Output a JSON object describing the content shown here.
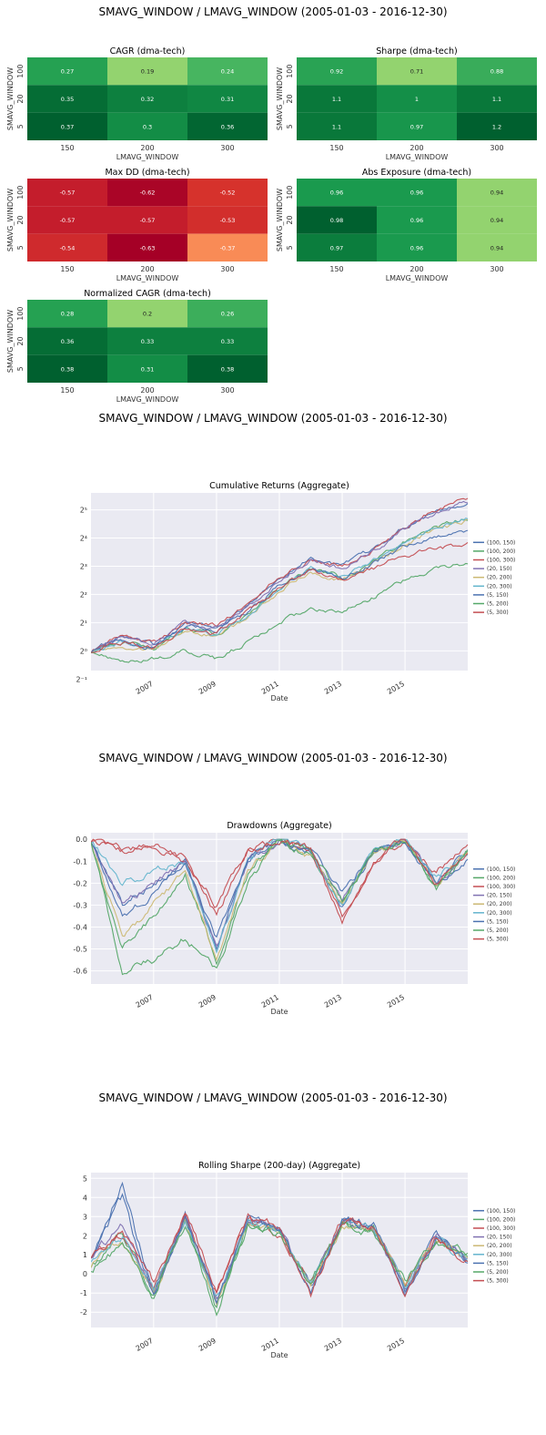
{
  "page": {
    "section_title": "SMAVG_WINDOW / LMAVG_WINDOW (2005-01-03 - 2016-12-30)"
  },
  "heatmaps": {
    "xlabel": "LMAVG_WINDOW",
    "ylabel": "SMAVG_WINDOW",
    "x_ticks": [
      "150",
      "200",
      "300"
    ],
    "y_ticks": [
      "100",
      "20",
      "5"
    ],
    "panels": [
      {
        "title": "CAGR (dma-tech)",
        "palette": "greens",
        "values": [
          [
            0.27,
            0.19,
            0.24
          ],
          [
            0.35,
            0.32,
            0.31
          ],
          [
            0.37,
            0.3,
            0.36
          ]
        ]
      },
      {
        "title": "Sharpe (dma-tech)",
        "palette": "greens",
        "values": [
          [
            0.92,
            0.71,
            0.88
          ],
          [
            1.1,
            1,
            1.1
          ],
          [
            1.1,
            0.97,
            1.2
          ]
        ]
      },
      {
        "title": "Max DD (dma-tech)",
        "palette": "reds",
        "values": [
          [
            -0.57,
            -0.62,
            -0.52
          ],
          [
            -0.57,
            -0.57,
            -0.53
          ],
          [
            -0.54,
            -0.63,
            -0.37
          ]
        ]
      },
      {
        "title": "Abs Exposure (dma-tech)",
        "palette": "greens",
        "values": [
          [
            0.96,
            0.96,
            0.94
          ],
          [
            0.98,
            0.96,
            0.94
          ],
          [
            0.97,
            0.96,
            0.94
          ]
        ]
      },
      {
        "title": "Normalized CAGR (dma-tech)",
        "palette": "greens",
        "values": [
          [
            0.28,
            0.2,
            0.26
          ],
          [
            0.36,
            0.33,
            0.33
          ],
          [
            0.38,
            0.31,
            0.38
          ]
        ]
      }
    ]
  },
  "chart_data": [
    {
      "type": "line",
      "title": "Cumulative Returns  (Aggregate)",
      "xlabel": "Date",
      "ylabel": "",
      "x_range": [
        "2005-01-03",
        "2016-12-30"
      ],
      "x_ticks": [
        "2007",
        "2009",
        "2011",
        "2013",
        "2015"
      ],
      "y_scale": "log2",
      "y_ticks": [
        "2⁻¹",
        "2⁰",
        "2¹",
        "2²",
        "2³",
        "2⁴",
        "2⁵"
      ],
      "ylim": [
        -0.7,
        5.6
      ],
      "legend_position": "right",
      "series": [
        {
          "name": "(100, 150)",
          "color": "#4c72b0",
          "values": [
            0,
            0.5,
            0.2,
            1.0,
            0.8,
            1.6,
            2.6,
            3.3,
            3.0,
            3.6,
            4.4,
            5.0,
            5.3
          ]
        },
        {
          "name": "(100, 200)",
          "color": "#55a868",
          "values": [
            0,
            0.3,
            0.1,
            0.8,
            0.6,
            1.3,
            2.2,
            2.9,
            2.6,
            3.2,
            3.9,
            4.4,
            4.7
          ]
        },
        {
          "name": "(100, 300)",
          "color": "#c44e52",
          "values": [
            0,
            0.5,
            0.3,
            1.0,
            0.9,
            1.7,
            2.6,
            3.2,
            3.0,
            3.6,
            4.4,
            5.0,
            5.4
          ]
        },
        {
          "name": "(20, 150)",
          "color": "#8172b2",
          "values": [
            0,
            0.5,
            0.2,
            1.0,
            0.8,
            1.6,
            2.5,
            3.2,
            2.9,
            3.5,
            4.3,
            4.9,
            5.3
          ]
        },
        {
          "name": "(20, 200)",
          "color": "#ccb974",
          "values": [
            0,
            0.2,
            0.0,
            0.7,
            0.5,
            1.2,
            2.1,
            2.8,
            2.5,
            3.1,
            3.8,
            4.3,
            4.6
          ]
        },
        {
          "name": "(20, 300)",
          "color": "#64b5cd",
          "values": [
            0,
            0.3,
            0.1,
            0.8,
            0.6,
            1.3,
            2.2,
            2.9,
            2.6,
            3.2,
            3.9,
            4.4,
            4.7
          ]
        },
        {
          "name": "(5, 150)",
          "color": "#4c72b0",
          "values": [
            0,
            0.4,
            0.1,
            0.9,
            0.7,
            1.4,
            2.3,
            2.9,
            2.6,
            3.1,
            3.7,
            4.1,
            4.2
          ]
        },
        {
          "name": "(5, 200)",
          "color": "#55a868",
          "values": [
            0,
            -0.4,
            -0.3,
            0.0,
            -0.3,
            0.3,
            1.0,
            1.5,
            1.4,
            1.9,
            2.5,
            2.9,
            3.1
          ]
        },
        {
          "name": "(5, 300)",
          "color": "#c44e52",
          "values": [
            0,
            0.3,
            0.1,
            0.8,
            0.6,
            1.4,
            2.2,
            2.9,
            2.5,
            2.9,
            3.4,
            3.6,
            3.8
          ]
        }
      ]
    },
    {
      "type": "line",
      "title": "Drawdowns  (Aggregate)",
      "xlabel": "Date",
      "ylabel": "",
      "x_range": [
        "2005-01-03",
        "2016-12-30"
      ],
      "x_ticks": [
        "2007",
        "2009",
        "2011",
        "2013",
        "2015"
      ],
      "y_ticks": [
        "0.0",
        "-0.1",
        "-0.2",
        "-0.3",
        "-0.4",
        "-0.5",
        "-0.6"
      ],
      "ylim": [
        -0.66,
        0.03
      ],
      "legend_position": "right",
      "series": [
        {
          "name": "(100, 150)",
          "color": "#4c72b0",
          "values": [
            0,
            -0.3,
            -0.2,
            -0.1,
            -0.5,
            -0.1,
            0,
            -0.05,
            -0.3,
            -0.05,
            0,
            -0.2,
            -0.05
          ]
        },
        {
          "name": "(100, 200)",
          "color": "#55a868",
          "values": [
            0,
            -0.5,
            -0.35,
            -0.15,
            -0.55,
            -0.15,
            0,
            -0.08,
            -0.3,
            -0.06,
            0,
            -0.22,
            -0.06
          ]
        },
        {
          "name": "(100, 300)",
          "color": "#c44e52",
          "values": [
            0,
            -0.05,
            -0.02,
            -0.1,
            -0.3,
            -0.05,
            0,
            -0.05,
            -0.35,
            -0.1,
            0,
            -0.15,
            -0.02
          ]
        },
        {
          "name": "(20, 150)",
          "color": "#8172b2",
          "values": [
            0,
            -0.3,
            -0.2,
            -0.1,
            -0.5,
            -0.1,
            0,
            -0.05,
            -0.28,
            -0.05,
            0,
            -0.2,
            -0.05
          ]
        },
        {
          "name": "(20, 200)",
          "color": "#ccb974",
          "values": [
            0,
            -0.45,
            -0.3,
            -0.15,
            -0.55,
            -0.15,
            0,
            -0.08,
            -0.3,
            -0.06,
            0,
            -0.2,
            -0.06
          ]
        },
        {
          "name": "(20, 300)",
          "color": "#64b5cd",
          "values": [
            0,
            -0.2,
            -0.15,
            -0.1,
            -0.5,
            -0.1,
            0,
            -0.05,
            -0.3,
            -0.05,
            0,
            -0.18,
            -0.05
          ]
        },
        {
          "name": "(5, 150)",
          "color": "#4c72b0",
          "values": [
            0,
            -0.35,
            -0.25,
            -0.1,
            -0.45,
            -0.1,
            0,
            -0.05,
            -0.25,
            -0.05,
            0,
            -0.2,
            -0.1
          ]
        },
        {
          "name": "(5, 200)",
          "color": "#55a868",
          "values": [
            0,
            -0.6,
            -0.55,
            -0.45,
            -0.6,
            -0.2,
            0,
            -0.05,
            -0.28,
            -0.05,
            0,
            -0.22,
            -0.05
          ]
        },
        {
          "name": "(5, 300)",
          "color": "#c44e52",
          "values": [
            0,
            -0.05,
            -0.03,
            -0.08,
            -0.35,
            -0.05,
            0,
            -0.05,
            -0.38,
            -0.1,
            0,
            -0.2,
            -0.08
          ]
        }
      ]
    },
    {
      "type": "line",
      "title": "Rolling Sharpe (200-day)  (Aggregate)",
      "xlabel": "Date",
      "ylabel": "",
      "x_range": [
        "2005-01-03",
        "2016-12-30"
      ],
      "x_ticks": [
        "2007",
        "2009",
        "2011",
        "2013",
        "2015"
      ],
      "y_ticks": [
        "5",
        "4",
        "3",
        "2",
        "1",
        "0",
        "-1",
        "-2"
      ],
      "ylim": [
        -2.8,
        5.3
      ],
      "legend_position": "right",
      "series": [
        {
          "name": "(100, 150)",
          "color": "#4c72b0",
          "values": [
            1.0,
            4.8,
            -1.2,
            3.0,
            -1.5,
            2.8,
            2.4,
            -0.8,
            2.8,
            2.5,
            -0.8,
            2.0,
            0.8
          ]
        },
        {
          "name": "(100, 200)",
          "color": "#55a868",
          "values": [
            0.5,
            2.0,
            -1.0,
            2.8,
            -1.8,
            2.6,
            2.2,
            -0.5,
            2.6,
            2.4,
            -0.5,
            1.8,
            1.0
          ]
        },
        {
          "name": "(100, 300)",
          "color": "#c44e52",
          "values": [
            1.0,
            2.0,
            -0.8,
            3.0,
            -1.0,
            2.8,
            2.2,
            -0.6,
            2.8,
            2.4,
            -0.6,
            1.9,
            0.6
          ]
        },
        {
          "name": "(20, 150)",
          "color": "#8172b2",
          "values": [
            1.0,
            2.5,
            -1.0,
            3.0,
            -1.3,
            2.7,
            2.3,
            -0.7,
            2.7,
            2.4,
            -0.7,
            1.9,
            0.7
          ]
        },
        {
          "name": "(20, 200)",
          "color": "#ccb974",
          "values": [
            0.5,
            1.8,
            -1.0,
            2.8,
            -1.5,
            2.6,
            2.2,
            -0.5,
            2.6,
            2.3,
            -0.5,
            1.8,
            0.9
          ]
        },
        {
          "name": "(20, 300)",
          "color": "#64b5cd",
          "values": [
            0.8,
            1.8,
            -0.8,
            2.8,
            -1.2,
            2.6,
            2.2,
            -0.5,
            2.6,
            2.3,
            -0.5,
            1.8,
            0.8
          ]
        },
        {
          "name": "(5, 150)",
          "color": "#4c72b0",
          "values": [
            1.0,
            4.0,
            -1.3,
            3.0,
            -1.6,
            2.8,
            2.3,
            -0.9,
            2.8,
            2.5,
            -0.9,
            2.0,
            0.6
          ]
        },
        {
          "name": "(5, 200)",
          "color": "#55a868",
          "values": [
            0.3,
            1.5,
            -1.2,
            2.6,
            -2.2,
            2.5,
            2.1,
            -0.4,
            2.5,
            2.2,
            -0.4,
            1.7,
            1.2
          ]
        },
        {
          "name": "(5, 300)",
          "color": "#c44e52",
          "values": [
            1.0,
            2.2,
            -0.5,
            3.2,
            -0.8,
            3.0,
            2.4,
            -1.0,
            2.8,
            2.5,
            -0.9,
            1.8,
            0.5
          ]
        }
      ]
    }
  ]
}
